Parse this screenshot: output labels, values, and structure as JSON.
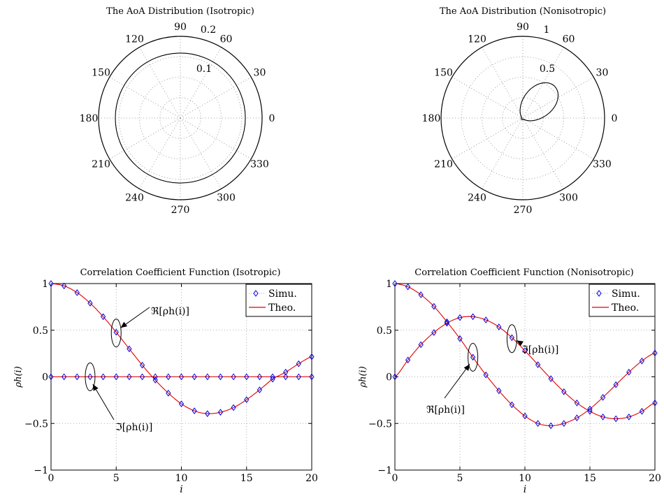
{
  "chart_data": [
    {
      "type": "polar",
      "title": "The AoA Distribution (Isotropic)",
      "angle_labels": [
        "0",
        "30",
        "60",
        "90",
        "120",
        "150",
        "180",
        "210",
        "240",
        "270",
        "300",
        "330"
      ],
      "radial_labels": [
        "0.1",
        "0.2"
      ],
      "rlim": [
        0,
        0.2
      ],
      "grid": true,
      "series": [
        {
          "curve": "circle",
          "r": 0.159
        }
      ]
    },
    {
      "type": "polar",
      "title": "The AoA Distribution (Nonisotropic)",
      "angle_labels": [
        "0",
        "30",
        "60",
        "90",
        "120",
        "150",
        "180",
        "210",
        "240",
        "270",
        "300",
        "330"
      ],
      "radial_labels": [
        "0.5",
        "1"
      ],
      "rlim": [
        0,
        1
      ],
      "grid": true,
      "series": [
        {
          "curve": "von-mises",
          "mean_angle_deg": 45,
          "kappa": 3,
          "peak_r": 0.55
        }
      ]
    },
    {
      "type": "line",
      "title": "Correlation Coefficient Function (Isotropic)",
      "xlabel": "i",
      "ylabel": "ρh(i)",
      "xlim": [
        0,
        20
      ],
      "ylim": [
        -1,
        1
      ],
      "xticks": [
        "0",
        "5",
        "10",
        "15",
        "20"
      ],
      "yticks": [
        "−1",
        "−0.5",
        "0",
        "0.5",
        "1"
      ],
      "grid": true,
      "legend": {
        "position": "top-right",
        "entries": [
          "Simu.",
          "Theo."
        ]
      },
      "annotations": [
        {
          "text": "ℜ[ρh(i)]",
          "at": [
            5,
            0.47
          ]
        },
        {
          "text": "ℑ[ρh(i)]",
          "at": [
            3,
            0
          ]
        }
      ],
      "x": [
        0,
        1,
        2,
        3,
        4,
        5,
        6,
        7,
        8,
        9,
        10,
        11,
        12,
        13,
        14,
        15,
        16,
        17,
        18,
        19,
        20
      ],
      "series": [
        {
          "part": "real",
          "values": [
            1.0,
            0.975,
            0.903,
            0.79,
            0.645,
            0.478,
            0.3,
            0.125,
            -0.035,
            -0.175,
            -0.29,
            -0.365,
            -0.395,
            -0.38,
            -0.33,
            -0.245,
            -0.14,
            -0.025,
            0.05,
            0.14,
            0.215
          ]
        },
        {
          "part": "imag",
          "values": [
            0,
            0,
            0,
            0,
            0,
            0,
            0,
            0,
            0,
            0,
            0,
            0,
            0,
            0,
            0,
            0,
            0,
            0,
            0,
            0,
            0
          ]
        }
      ]
    },
    {
      "type": "line",
      "title": "Correlation Coefficient Function (Nonisotropic)",
      "xlabel": "i",
      "ylabel": "ρh(i)",
      "xlim": [
        0,
        20
      ],
      "ylim": [
        -1,
        1
      ],
      "xticks": [
        "0",
        "5",
        "10",
        "15",
        "20"
      ],
      "yticks": [
        "−1",
        "−0.5",
        "0",
        "0.5",
        "1"
      ],
      "grid": true,
      "legend": {
        "position": "top-right",
        "entries": [
          "Simu.",
          "Theo."
        ]
      },
      "annotations": [
        {
          "text": "ℑ[ρh(i)]",
          "at": [
            9,
            0.41
          ]
        },
        {
          "text": "ℜ[ρh(i)]",
          "at": [
            6,
            0.21
          ]
        }
      ],
      "x": [
        0,
        1,
        2,
        3,
        4,
        5,
        6,
        7,
        8,
        9,
        10,
        11,
        12,
        13,
        14,
        15,
        16,
        17,
        18,
        19,
        20
      ],
      "series": [
        {
          "part": "real",
          "values": [
            1.0,
            0.965,
            0.88,
            0.755,
            0.59,
            0.41,
            0.21,
            0.02,
            -0.15,
            -0.3,
            -0.42,
            -0.5,
            -0.525,
            -0.5,
            -0.44,
            -0.345,
            -0.22,
            -0.085,
            0.05,
            0.17,
            0.255
          ]
        },
        {
          "part": "imag",
          "values": [
            0,
            0.18,
            0.345,
            0.475,
            0.575,
            0.635,
            0.645,
            0.61,
            0.535,
            0.42,
            0.28,
            0.13,
            -0.02,
            -0.16,
            -0.28,
            -0.37,
            -0.43,
            -0.45,
            -0.43,
            -0.37,
            -0.28
          ]
        }
      ]
    }
  ]
}
